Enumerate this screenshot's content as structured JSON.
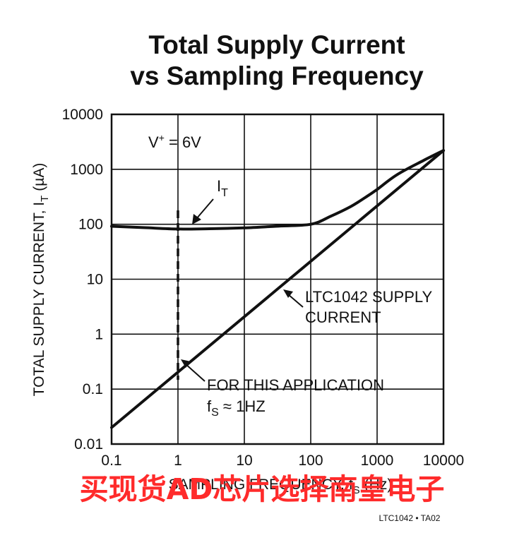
{
  "chart_data": {
    "type": "line",
    "title_lines": [
      "Total Supply Current",
      "vs Sampling Frequency"
    ],
    "xlabel_main": "SAMPLING FREQUENCY, f",
    "xlabel_sub": "S",
    "xlabel_unit": "(Hz)",
    "ylabel_main": "TOTAL SUPPLY CURRENT, I",
    "ylabel_sub": "T",
    "ylabel_unit": "(µA)",
    "x_scale": "log",
    "y_scale": "log",
    "xlim": [
      0.1,
      10000
    ],
    "ylim": [
      0.01,
      10000
    ],
    "x_ticks": [
      "0.1",
      "1",
      "10",
      "100",
      "1000",
      "10000"
    ],
    "y_ticks": [
      "0.01",
      "0.1",
      "1",
      "10",
      "100",
      "1000",
      "10000"
    ],
    "grid": true,
    "series": [
      {
        "name": "I",
        "x": [
          0.1,
          0.3,
          1,
          3,
          10,
          30,
          100,
          200,
          400,
          700,
          1000,
          2000,
          5000,
          10000
        ],
        "y": [
          92,
          87,
          82,
          83,
          86,
          92,
          100,
          140,
          210,
          320,
          430,
          800,
          1450,
          2200
        ]
      },
      {
        "name": "LTC1042 SUPPLY CURRENT",
        "x": [
          0.1,
          10000
        ],
        "y": [
          0.02,
          2200
        ]
      }
    ],
    "marker_x": 1,
    "annotations": {
      "condition_main": "V",
      "condition_sup": "+",
      "condition_rest": " = 6V",
      "it_main": "I",
      "it_sub": "T",
      "ltc_line1": "LTC1042 SUPPLY",
      "ltc_line2": "CURRENT",
      "app_line1": "FOR THIS APPLICATION",
      "app_main": "f",
      "app_sub": "S",
      "app_rest": " ≈ 1HZ"
    }
  },
  "watermark": "买现货AD芯片选择南皇电子",
  "figure_code": "LTC1042 • TA02"
}
